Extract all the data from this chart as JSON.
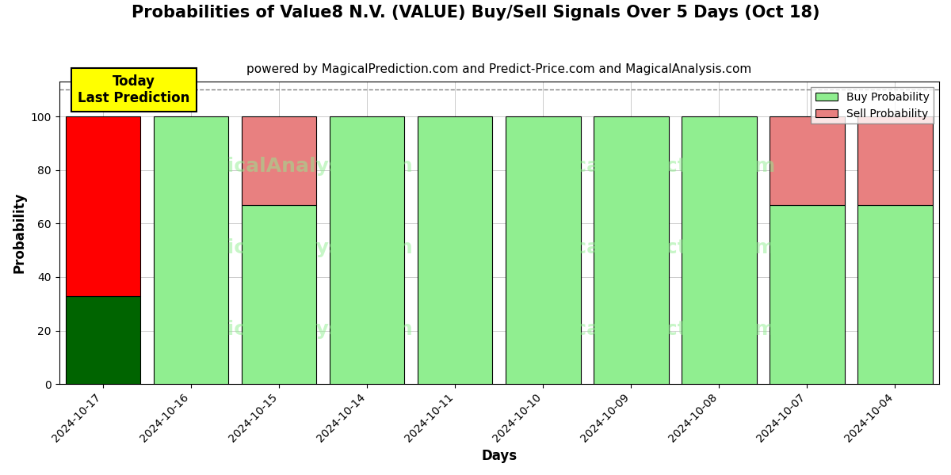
{
  "title": "Probabilities of Value8 N.V. (VALUE) Buy/Sell Signals Over 5 Days (Oct 18)",
  "subtitle": "powered by MagicalPrediction.com and Predict-Price.com and MagicalAnalysis.com",
  "xlabel": "Days",
  "ylabel": "Probability",
  "categories": [
    "2024-10-17",
    "2024-10-16",
    "2024-10-15",
    "2024-10-14",
    "2024-10-11",
    "2024-10-10",
    "2024-10-09",
    "2024-10-08",
    "2024-10-07",
    "2024-10-04"
  ],
  "buy_values": [
    33,
    100,
    67,
    100,
    100,
    100,
    100,
    100,
    67,
    67
  ],
  "sell_values": [
    67,
    0,
    33,
    0,
    0,
    0,
    0,
    0,
    33,
    33
  ],
  "buy_colors": [
    "#006400",
    "#90EE90",
    "#90EE90",
    "#90EE90",
    "#90EE90",
    "#90EE90",
    "#90EE90",
    "#90EE90",
    "#90EE90",
    "#90EE90"
  ],
  "sell_colors": [
    "#FF0000",
    "#FF0000",
    "#E88080",
    "#E88080",
    "#E88080",
    "#E88080",
    "#E88080",
    "#E88080",
    "#E88080",
    "#E88080"
  ],
  "today_label": "Today\nLast Prediction",
  "today_index": 0,
  "legend_buy_color": "#90EE90",
  "legend_sell_color": "#E88080",
  "legend_buy_label": "Buy Probability",
  "legend_sell_label": "Sell Probability",
  "ylim": [
    0,
    113
  ],
  "yticks": [
    0,
    20,
    40,
    60,
    80,
    100
  ],
  "dashed_line_y": 110,
  "background_color": "#ffffff",
  "grid_color": "#cccccc",
  "title_fontsize": 15,
  "subtitle_fontsize": 11,
  "bar_width": 0.85
}
